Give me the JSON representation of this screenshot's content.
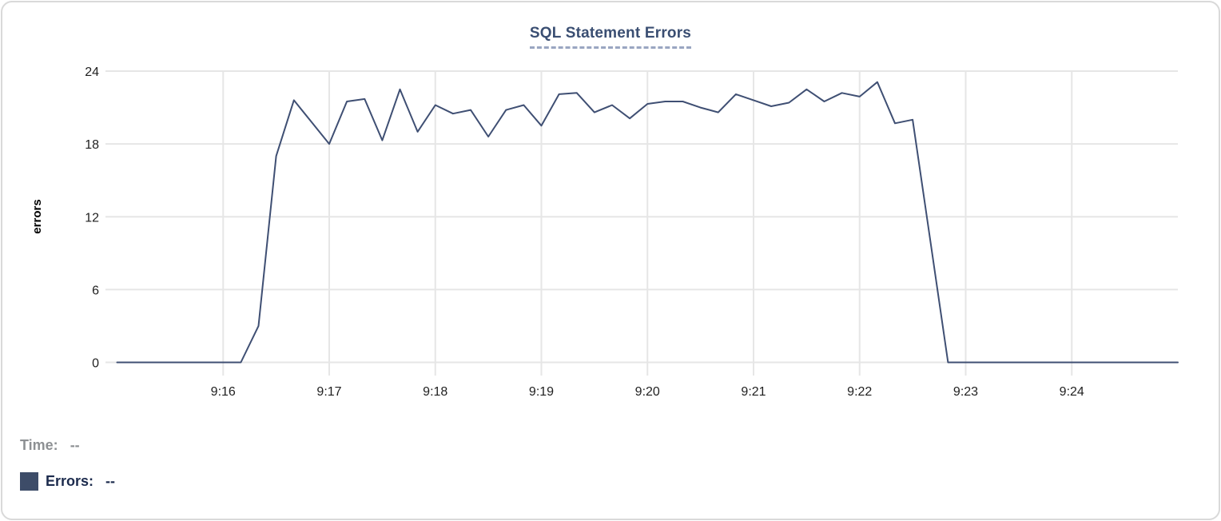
{
  "title": "SQL Statement Errors",
  "legend": {
    "time_label": "Time:",
    "time_value": "--",
    "errors_label": "Errors:",
    "errors_value": "--",
    "swatch_color": "#3d4c68"
  },
  "colors": {
    "line": "#3f4f73",
    "grid": "#e6e6e6",
    "tick_text": "#1f1f1f",
    "axis_label": "#000000",
    "title_text": "#3a4e72",
    "title_underline": "#9aa6c1",
    "card_border": "#d9d9d9"
  },
  "chart_data": {
    "type": "line",
    "title": "SQL Statement Errors",
    "xlabel": "",
    "ylabel": "errors",
    "grid": true,
    "legend_position": "bottom-left",
    "ylim": [
      0,
      24
    ],
    "y_ticks": [
      0,
      6,
      12,
      18,
      24
    ],
    "x_range": [
      "9:15:00",
      "9:25:00"
    ],
    "x_tick_labels": [
      "9:16",
      "9:17",
      "9:18",
      "9:19",
      "9:20",
      "9:21",
      "9:22",
      "9:23",
      "9:24"
    ],
    "series": [
      {
        "name": "Errors",
        "color": "#3f4f73",
        "points": [
          {
            "time": "9:15:00",
            "value": 0
          },
          {
            "time": "9:15:10",
            "value": 0
          },
          {
            "time": "9:15:20",
            "value": 0
          },
          {
            "time": "9:15:30",
            "value": 0
          },
          {
            "time": "9:15:40",
            "value": 0
          },
          {
            "time": "9:15:50",
            "value": 0
          },
          {
            "time": "9:16:00",
            "value": 0
          },
          {
            "time": "9:16:10",
            "value": 0
          },
          {
            "time": "9:16:20",
            "value": 3
          },
          {
            "time": "9:16:30",
            "value": 17
          },
          {
            "time": "9:16:40",
            "value": 21.6
          },
          {
            "time": "9:16:50",
            "value": 19.8
          },
          {
            "time": "9:17:00",
            "value": 18
          },
          {
            "time": "9:17:10",
            "value": 21.5
          },
          {
            "time": "9:17:20",
            "value": 21.7
          },
          {
            "time": "9:17:30",
            "value": 18.3
          },
          {
            "time": "9:17:40",
            "value": 22.5
          },
          {
            "time": "9:17:50",
            "value": 19
          },
          {
            "time": "9:18:00",
            "value": 21.2
          },
          {
            "time": "9:18:10",
            "value": 20.5
          },
          {
            "time": "9:18:20",
            "value": 20.8
          },
          {
            "time": "9:18:30",
            "value": 18.6
          },
          {
            "time": "9:18:40",
            "value": 20.8
          },
          {
            "time": "9:18:50",
            "value": 21.2
          },
          {
            "time": "9:19:00",
            "value": 19.5
          },
          {
            "time": "9:19:10",
            "value": 22.1
          },
          {
            "time": "9:19:20",
            "value": 22.2
          },
          {
            "time": "9:19:30",
            "value": 20.6
          },
          {
            "time": "9:19:40",
            "value": 21.2
          },
          {
            "time": "9:19:50",
            "value": 20.1
          },
          {
            "time": "9:20:00",
            "value": 21.3
          },
          {
            "time": "9:20:10",
            "value": 21.5
          },
          {
            "time": "9:20:20",
            "value": 21.5
          },
          {
            "time": "9:20:30",
            "value": 21.0
          },
          {
            "time": "9:20:40",
            "value": 20.6
          },
          {
            "time": "9:20:50",
            "value": 22.1
          },
          {
            "time": "9:21:00",
            "value": 21.6
          },
          {
            "time": "9:21:10",
            "value": 21.1
          },
          {
            "time": "9:21:20",
            "value": 21.4
          },
          {
            "time": "9:21:30",
            "value": 22.5
          },
          {
            "time": "9:21:40",
            "value": 21.5
          },
          {
            "time": "9:21:50",
            "value": 22.2
          },
          {
            "time": "9:22:00",
            "value": 21.9
          },
          {
            "time": "9:22:10",
            "value": 23.1
          },
          {
            "time": "9:22:20",
            "value": 19.7
          },
          {
            "time": "9:22:30",
            "value": 20.0
          },
          {
            "time": "9:22:40",
            "value": 10
          },
          {
            "time": "9:22:50",
            "value": 0
          },
          {
            "time": "9:23:00",
            "value": 0
          },
          {
            "time": "9:23:10",
            "value": 0
          },
          {
            "time": "9:23:20",
            "value": 0
          },
          {
            "time": "9:23:30",
            "value": 0
          },
          {
            "time": "9:23:40",
            "value": 0
          },
          {
            "time": "9:23:50",
            "value": 0
          },
          {
            "time": "9:24:00",
            "value": 0
          },
          {
            "time": "9:24:10",
            "value": 0
          },
          {
            "time": "9:24:20",
            "value": 0
          },
          {
            "time": "9:24:30",
            "value": 0
          },
          {
            "time": "9:24:40",
            "value": 0
          },
          {
            "time": "9:24:50",
            "value": 0
          },
          {
            "time": "9:25:00",
            "value": 0
          }
        ]
      }
    ]
  }
}
